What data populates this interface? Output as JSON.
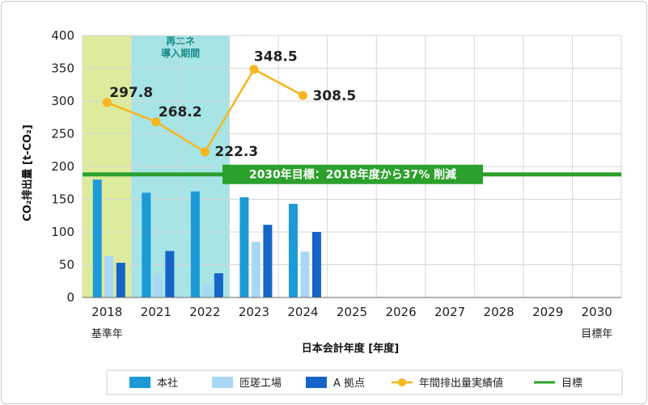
{
  "chart_data": {
    "type": "bar",
    "categories": [
      "2018",
      "2021",
      "2022",
      "2023",
      "2024",
      "2025",
      "2026",
      "2027",
      "2028",
      "2029",
      "2030"
    ],
    "series": [
      {
        "name": "本社",
        "values": [
          180,
          160,
          162,
          153,
          143,
          null,
          null,
          null,
          null,
          null,
          null
        ],
        "color": "#1c9ad6"
      },
      {
        "name": "匝瑳工場",
        "values": [
          63,
          35,
          20,
          85,
          70,
          null,
          null,
          null,
          null,
          null,
          null
        ],
        "color": "#a8d8f5"
      },
      {
        "name": "A 拠点",
        "values": [
          53,
          71,
          37,
          111,
          100,
          null,
          null,
          null,
          null,
          null,
          null
        ],
        "color": "#1565c8"
      }
    ],
    "line": {
      "name": "年間排出量実績値",
      "values": [
        297.8,
        268.2,
        222.3,
        348.5,
        308.5
      ],
      "labels": [
        "297.8",
        "268.2",
        "222.3",
        "348.5",
        "308.5"
      ],
      "color": "#f7b51e",
      "highlight_color": "#e00000"
    },
    "target": {
      "name": "目標",
      "value": 188,
      "color": "#2ca02c",
      "label": "2030年目標：2018年度から37% 削減"
    },
    "bands": [
      {
        "label": "",
        "from": "2018",
        "to": "2018",
        "color": "#dcec9c"
      },
      {
        "label_lines": [
          "再エネ",
          "導入期間"
        ],
        "from": "2021",
        "to": "2022",
        "color": "#a6e4e6",
        "label_color": "#1a8a8a"
      }
    ],
    "ylim": [
      0,
      400
    ],
    "yticks": [
      "0",
      "50",
      "100",
      "150",
      "200",
      "250",
      "300",
      "350",
      "400"
    ],
    "ylabel": "CO₂排出量 [t-CO₂]",
    "xlabel": "日本会計年度 [年度]",
    "sub_labels": {
      "first": "基準年",
      "last": "目標年"
    },
    "legend_position": "bottom",
    "grid": true
  }
}
